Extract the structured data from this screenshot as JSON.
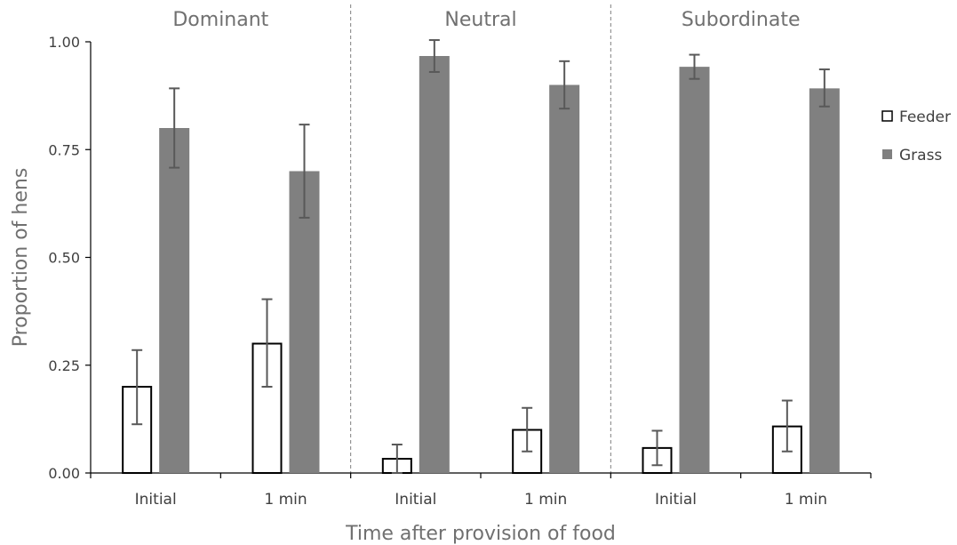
{
  "chart_data": {
    "type": "bar",
    "title": "",
    "xlabel": "Time after provision of food",
    "ylabel": "Proportion of hens",
    "ylim": [
      0,
      1
    ],
    "yticks": [
      "0.00",
      "0.25",
      "0.50",
      "0.75",
      "1.00"
    ],
    "ytick_values": [
      0,
      0.25,
      0.5,
      0.75,
      1.0
    ],
    "grid": false,
    "legend_position": "right",
    "groups": [
      {
        "label": "Dominant",
        "categories": [
          "Initial",
          "1 min"
        ]
      },
      {
        "label": "Neutral",
        "categories": [
          "Initial",
          "1 min"
        ]
      },
      {
        "label": "Subordinate",
        "categories": [
          "Initial",
          "1 min"
        ]
      }
    ],
    "series": [
      {
        "name": "Feeder",
        "color": "#ffffff",
        "stroke": "#000000",
        "values": [
          0.2,
          0.3,
          0.033,
          0.1,
          0.058,
          0.108
        ],
        "err_low": [
          0.113,
          0.2,
          0.0,
          0.05,
          0.018,
          0.05
        ],
        "err_high": [
          0.285,
          0.403,
          0.066,
          0.151,
          0.098,
          0.168
        ]
      },
      {
        "name": "Grass",
        "color": "#808080",
        "stroke": "#808080",
        "values": [
          0.8,
          0.7,
          0.967,
          0.9,
          0.942,
          0.892
        ],
        "err_low": [
          0.708,
          0.592,
          0.93,
          0.845,
          0.914,
          0.85
        ],
        "err_high": [
          0.892,
          0.808,
          1.004,
          0.955,
          0.97,
          0.936
        ]
      }
    ]
  }
}
